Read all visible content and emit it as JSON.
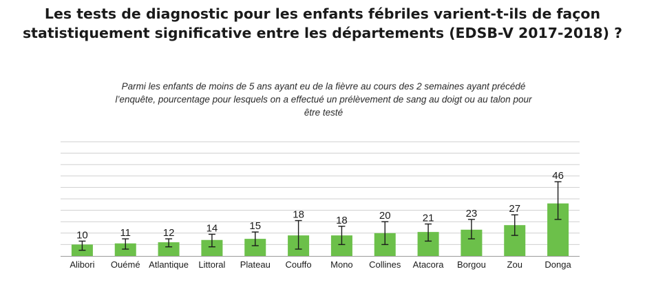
{
  "chart_data": {
    "type": "bar",
    "title": "Les tests de diagnostic pour les enfants fébriles varient-t-ils de façon statistiquement significative entre les départements (EDSB-V 2017-2018) ?",
    "title_lines": [
      "Les tests de diagnostic pour les enfants fébriles varient-t-ils de façon",
      "statistiquement significative entre les départements (EDSB-V 2017-2018) ?"
    ],
    "subtitle_lines": [
      "Parmi les enfants de moins de 5 ans ayant eu de la fièvre au cours des 2 semaines ayant précédé",
      "l’enquête, pourcentage pour lesquels on a effectué un prélèvement de sang au doigt ou au talon pour",
      "être testé"
    ],
    "categories": [
      "Alibori",
      "Ouémé",
      "Atlantique",
      "Littoral",
      "Plateau",
      "Couffo",
      "Mono",
      "Collines",
      "Atacora",
      "Borgou",
      "Zou",
      "Donga"
    ],
    "values": [
      10,
      11,
      12,
      14,
      15,
      18,
      18,
      20,
      21,
      23,
      27,
      46
    ],
    "ci_low": [
      5,
      6,
      8,
      8,
      9,
      6,
      10,
      10,
      13,
      15,
      18,
      32
    ],
    "ci_high": [
      13,
      15,
      15,
      19,
      21,
      31,
      26,
      30,
      28,
      32,
      36,
      65
    ],
    "ylim": [
      0,
      100
    ],
    "grid": true,
    "bar_color": "#6cc04a",
    "xlabel": "",
    "ylabel": ""
  }
}
